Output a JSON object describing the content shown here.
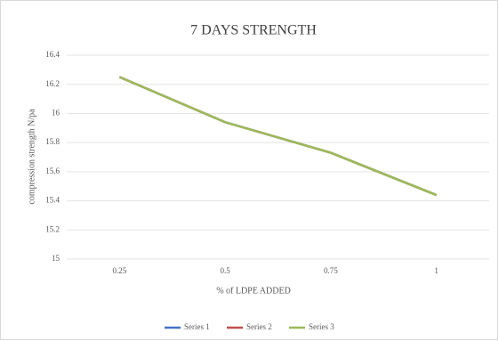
{
  "chart_data": {
    "type": "line",
    "title": "7 DAYS STRENGTH",
    "x_label": "% of LDPE ADDED",
    "y_label": "compression strength N/pa",
    "categories": [
      "0.25",
      "0.5",
      "0.75",
      "1"
    ],
    "series": [
      {
        "name": "Series 1",
        "color": "#4472c4",
        "values": [
          16.25,
          15.94,
          15.73,
          15.44
        ]
      },
      {
        "name": "Series 2",
        "color": "#c0504d",
        "values": [
          16.25,
          15.94,
          15.73,
          15.44
        ]
      },
      {
        "name": "Series 3",
        "color": "#9bbb59",
        "values": [
          16.25,
          15.94,
          15.73,
          15.44
        ]
      }
    ],
    "ylim": [
      15,
      16.4
    ],
    "yticks": [
      15,
      15.2,
      15.4,
      15.6,
      15.8,
      16,
      16.2,
      16.4
    ],
    "grid": true
  }
}
